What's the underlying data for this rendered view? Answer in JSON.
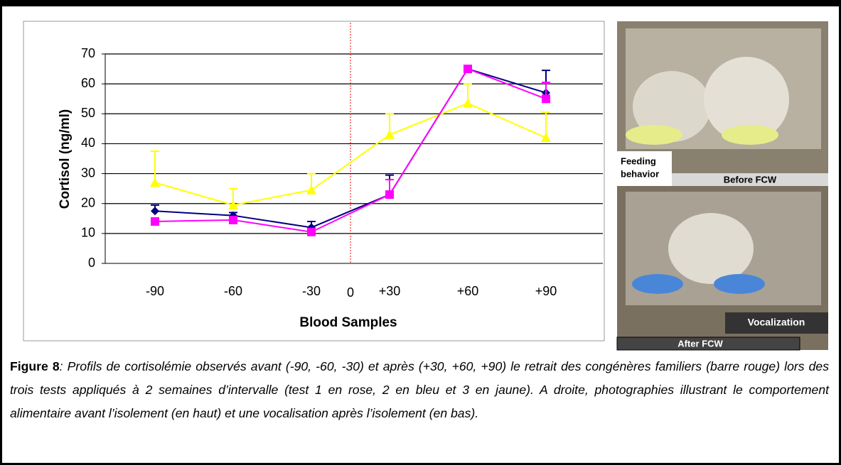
{
  "chart_data": {
    "type": "line",
    "categories": [
      "-90",
      "-60",
      "-30",
      "+30",
      "+60",
      "+90"
    ],
    "divider_label": "0",
    "divider_color": "#ff0000",
    "xlabel": "Blood Samples",
    "ylabel": "Cortisol (ng/ml)",
    "ylim": [
      0,
      70
    ],
    "yticks": [
      0,
      10,
      20,
      30,
      40,
      50,
      60,
      70
    ],
    "grid": true,
    "series": [
      {
        "color": "#ffff00",
        "marker": "triangle",
        "values": [
          27,
          19.5,
          24.5,
          43,
          53.5,
          42
        ],
        "errors": [
          10.5,
          5.5,
          5.5,
          7,
          6.5,
          8.5
        ]
      },
      {
        "color": "#000080",
        "marker": "diamond",
        "values": [
          17.5,
          16,
          12,
          23,
          65,
          57
        ],
        "errors": [
          2,
          1,
          2,
          6.5,
          0,
          7.5
        ]
      },
      {
        "color": "#ff00ff",
        "marker": "square",
        "values": [
          14,
          14.5,
          10.5,
          23,
          65,
          55
        ],
        "errors": [
          0,
          0,
          0,
          5,
          0,
          5.5
        ]
      }
    ]
  },
  "photos": {
    "top": {
      "label_lines": [
        "Feeding",
        "behavior"
      ],
      "caption": "Before FCW"
    },
    "bottom": {
      "label": "Vocalization",
      "caption": "After FCW"
    }
  },
  "caption": {
    "label": "Figure 8",
    "text": ": Profils de cortisolémie observés avant (-90, -60, -30) et après (+30, +60, +90) le retrait des congénères familiers (barre rouge) lors des trois tests appliqués à 2 semaines d’intervalle (test 1 en rose, 2 en bleu et 3 en jaune). A droite, photographies illustrant le comportement alimentaire avant l’isolement (en haut) et une vocalisation après l’isolement (en bas)."
  }
}
